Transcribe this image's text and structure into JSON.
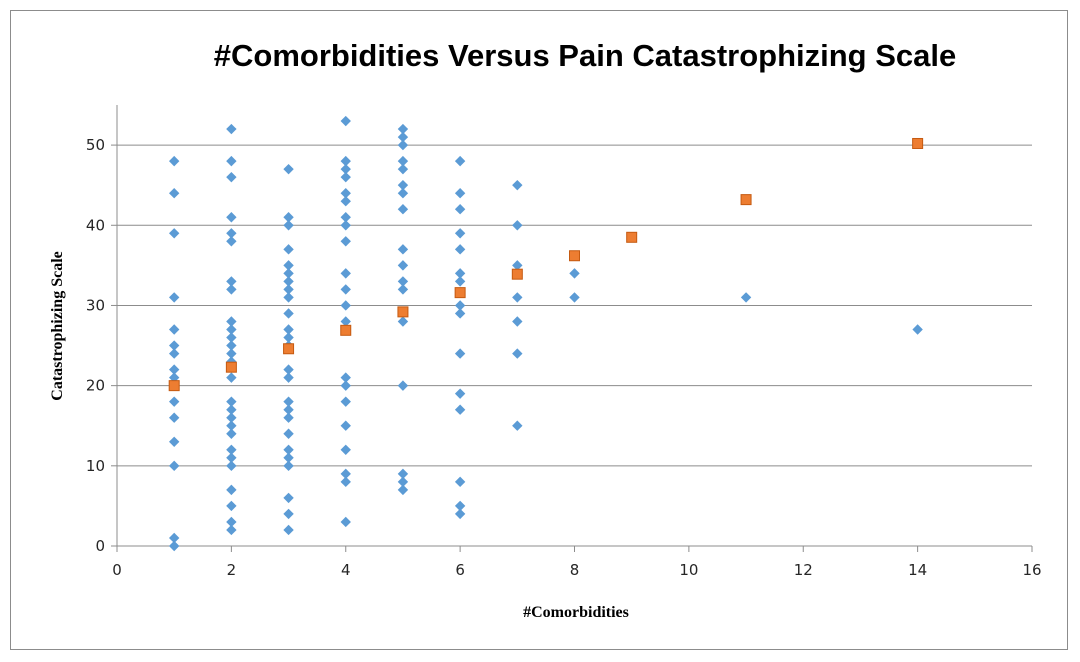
{
  "chart_data": {
    "type": "scatter",
    "title": "#Comorbidities Versus Pain Catastrophizing Scale",
    "xlabel": "#Comorbidities",
    "ylabel": "Catastrophizing Scale",
    "xlim": [
      0,
      16
    ],
    "ylim": [
      0,
      55
    ],
    "xticks": [
      0,
      2,
      4,
      6,
      8,
      10,
      12,
      14,
      16
    ],
    "yticks": [
      0,
      10,
      20,
      30,
      40,
      50
    ],
    "grid": "horizontal",
    "legend": "none",
    "series": [
      {
        "marker": "diamond",
        "color": "#5b9bd5",
        "points": [
          [
            1,
            48
          ],
          [
            1,
            44
          ],
          [
            1,
            39
          ],
          [
            1,
            31
          ],
          [
            1,
            27
          ],
          [
            1,
            25
          ],
          [
            1,
            24
          ],
          [
            1,
            22
          ],
          [
            1,
            21
          ],
          [
            1,
            18
          ],
          [
            1,
            16
          ],
          [
            1,
            13
          ],
          [
            1,
            10
          ],
          [
            1,
            1
          ],
          [
            1,
            0
          ],
          [
            2,
            52
          ],
          [
            2,
            48
          ],
          [
            2,
            46
          ],
          [
            2,
            41
          ],
          [
            2,
            39
          ],
          [
            2,
            38
          ],
          [
            2,
            33
          ],
          [
            2,
            32
          ],
          [
            2,
            28
          ],
          [
            2,
            27
          ],
          [
            2,
            26
          ],
          [
            2,
            25
          ],
          [
            2,
            24
          ],
          [
            2,
            23
          ],
          [
            2,
            21
          ],
          [
            2,
            18
          ],
          [
            2,
            17
          ],
          [
            2,
            16
          ],
          [
            2,
            15
          ],
          [
            2,
            14
          ],
          [
            2,
            12
          ],
          [
            2,
            11
          ],
          [
            2,
            10
          ],
          [
            2,
            7
          ],
          [
            2,
            5
          ],
          [
            2,
            3
          ],
          [
            2,
            2
          ],
          [
            3,
            47
          ],
          [
            3,
            41
          ],
          [
            3,
            40
          ],
          [
            3,
            37
          ],
          [
            3,
            35
          ],
          [
            3,
            34
          ],
          [
            3,
            33
          ],
          [
            3,
            32
          ],
          [
            3,
            31
          ],
          [
            3,
            29
          ],
          [
            3,
            27
          ],
          [
            3,
            26
          ],
          [
            3,
            25
          ],
          [
            3,
            22
          ],
          [
            3,
            21
          ],
          [
            3,
            18
          ],
          [
            3,
            17
          ],
          [
            3,
            16
          ],
          [
            3,
            14
          ],
          [
            3,
            12
          ],
          [
            3,
            11
          ],
          [
            3,
            10
          ],
          [
            3,
            6
          ],
          [
            3,
            4
          ],
          [
            3,
            2
          ],
          [
            4,
            53
          ],
          [
            4,
            48
          ],
          [
            4,
            47
          ],
          [
            4,
            46
          ],
          [
            4,
            44
          ],
          [
            4,
            43
          ],
          [
            4,
            41
          ],
          [
            4,
            40
          ],
          [
            4,
            38
          ],
          [
            4,
            34
          ],
          [
            4,
            32
          ],
          [
            4,
            30
          ],
          [
            4,
            28
          ],
          [
            4,
            21
          ],
          [
            4,
            20
          ],
          [
            4,
            18
          ],
          [
            4,
            15
          ],
          [
            4,
            12
          ],
          [
            4,
            9
          ],
          [
            4,
            8
          ],
          [
            4,
            3
          ],
          [
            5,
            52
          ],
          [
            5,
            51
          ],
          [
            5,
            50
          ],
          [
            5,
            48
          ],
          [
            5,
            47
          ],
          [
            5,
            45
          ],
          [
            5,
            44
          ],
          [
            5,
            42
          ],
          [
            5,
            37
          ],
          [
            5,
            35
          ],
          [
            5,
            33
          ],
          [
            5,
            32
          ],
          [
            5,
            28
          ],
          [
            5,
            20
          ],
          [
            5,
            9
          ],
          [
            5,
            8
          ],
          [
            5,
            7
          ],
          [
            6,
            48
          ],
          [
            6,
            44
          ],
          [
            6,
            42
          ],
          [
            6,
            39
          ],
          [
            6,
            37
          ],
          [
            6,
            34
          ],
          [
            6,
            33
          ],
          [
            6,
            30
          ],
          [
            6,
            29
          ],
          [
            6,
            24
          ],
          [
            6,
            19
          ],
          [
            6,
            17
          ],
          [
            6,
            8
          ],
          [
            6,
            5
          ],
          [
            6,
            4
          ],
          [
            7,
            45
          ],
          [
            7,
            40
          ],
          [
            7,
            35
          ],
          [
            7,
            31
          ],
          [
            7,
            28
          ],
          [
            7,
            24
          ],
          [
            7,
            15
          ],
          [
            8,
            34
          ],
          [
            8,
            31
          ],
          [
            11,
            31
          ],
          [
            14,
            27
          ]
        ]
      },
      {
        "marker": "square",
        "color": "#ed7d31",
        "points": [
          [
            1,
            20.0
          ],
          [
            2,
            22.3
          ],
          [
            3,
            24.6
          ],
          [
            4,
            26.9
          ],
          [
            5,
            29.2
          ],
          [
            6,
            31.6
          ],
          [
            7,
            33.9
          ],
          [
            8,
            36.2
          ],
          [
            9,
            38.5
          ],
          [
            11,
            43.2
          ],
          [
            14,
            50.2
          ]
        ]
      }
    ]
  }
}
